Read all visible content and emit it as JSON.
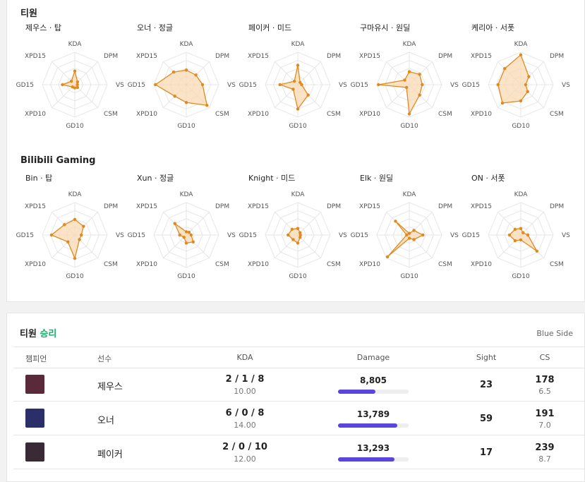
{
  "axes": [
    "KDA",
    "DPM",
    "VS",
    "CSM",
    "GD10",
    "XPD10",
    "GD15",
    "XPD15"
  ],
  "colors": {
    "radar_stroke": "#e08a1e",
    "radar_fill": "#f9d9b4",
    "win": "#1faa6b",
    "damage_bar": "#5a45e0"
  },
  "teams": [
    {
      "name": "티원",
      "players": [
        {
          "label": "제우스 · 탑",
          "values": [
            0.42,
            0.12,
            0.08,
            0.12,
            0.1,
            0.1,
            0.38,
            0.15
          ]
        },
        {
          "label": "오너 · 정글",
          "values": [
            0.45,
            0.42,
            0.5,
            0.9,
            0.55,
            0.5,
            0.95,
            0.55
          ]
        },
        {
          "label": "페이커 · 미드",
          "values": [
            0.6,
            0.1,
            0.12,
            0.45,
            0.75,
            0.2,
            0.55,
            0.15
          ]
        },
        {
          "label": "구마유시 · 원딜",
          "values": [
            0.4,
            0.45,
            0.4,
            0.45,
            0.9,
            0.12,
            0.95,
            0.2
          ]
        },
        {
          "label": "케리아 · 서폿",
          "values": [
            0.92,
            0.35,
            0.15,
            0.3,
            0.5,
            0.8,
            0.7,
            0.7
          ]
        }
      ]
    },
    {
      "name": "Bilibili Gaming",
      "players": [
        {
          "label": "Bin · 탑",
          "values": [
            0.48,
            0.38,
            0.2,
            0.2,
            0.72,
            0.3,
            0.72,
            0.45
          ]
        },
        {
          "label": "Xun · 정글",
          "values": [
            0.1,
            0.12,
            0.15,
            0.3,
            0.25,
            0.1,
            0.2,
            0.5
          ]
        },
        {
          "label": "Knight · 미드",
          "values": [
            0.2,
            0.1,
            0.08,
            0.1,
            0.25,
            0.2,
            0.3,
            0.25
          ]
        },
        {
          "label": "Elk · 원딜",
          "values": [
            0.05,
            0.2,
            0.42,
            0.2,
            0.1,
            0.95,
            0.08,
            0.6
          ]
        },
        {
          "label": "ON · 서폿",
          "values": [
            0.2,
            0.1,
            0.22,
            0.7,
            0.15,
            0.25,
            0.35,
            0.25
          ]
        }
      ]
    }
  ],
  "match": {
    "title_team": "티원",
    "result": "승리",
    "side": "Blue Side",
    "headers": {
      "champion": "챔피언",
      "player": "선수",
      "kda": "KDA",
      "damage": "Damage",
      "sight": "Sight",
      "cs": "CS"
    },
    "rows": [
      {
        "player": "제우스",
        "kda": "2 / 1 / 8",
        "kda_ratio": "10.00",
        "damage": "8,805",
        "damage_share": 0.53,
        "sight": "23",
        "cs": "178",
        "csm": "6.5",
        "icon_color": "#5a2a3a"
      },
      {
        "player": "오너",
        "kda": "6 / 0 / 8",
        "kda_ratio": "14.00",
        "damage": "13,789",
        "damage_share": 0.84,
        "sight": "59",
        "cs": "191",
        "csm": "7.0",
        "icon_color": "#2a2f6a"
      },
      {
        "player": "페이커",
        "kda": "2 / 0 / 10",
        "kda_ratio": "12.00",
        "damage": "13,293",
        "damage_share": 0.8,
        "sight": "17",
        "cs": "239",
        "csm": "8.7",
        "icon_color": "#3a2a35"
      }
    ]
  }
}
